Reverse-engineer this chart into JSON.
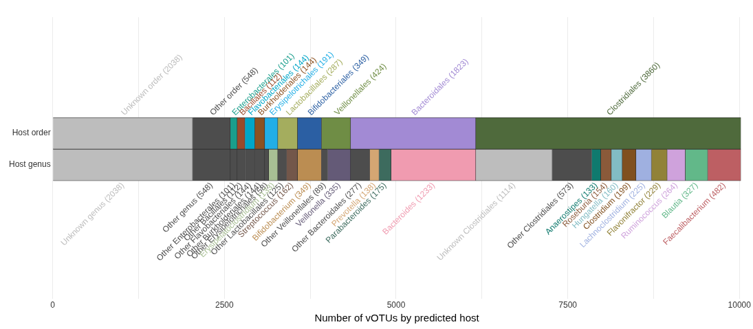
{
  "chart_data": {
    "type": "bar",
    "orientation": "horizontal",
    "stacked": true,
    "xlabel": "Number of vOTUs by predicted host",
    "categories": [
      "Host order",
      "Host genus"
    ],
    "xlim": [
      0,
      10021
    ],
    "xticks": [
      0,
      {
        "value": 1250,
        "label": null
      },
      2500,
      {
        "value": 3750,
        "label": null
      },
      5000,
      {
        "value": 6250,
        "label": null
      },
      7500,
      {
        "value": 8750,
        "label": null
      },
      10000
    ],
    "grid": "x",
    "legend": false,
    "series": [
      {
        "name": "Unknown order",
        "color": "#bdbdbd",
        "values": [
          2038,
          null
        ],
        "value_labels": [
          "(2038)",
          null
        ]
      },
      {
        "name": "Other order",
        "color": "#4d4d4d",
        "values": [
          548,
          null
        ],
        "value_labels": [
          "(548)",
          null
        ]
      },
      {
        "name": "Enterobacterales",
        "color": "#1a9e8c",
        "values": [
          101,
          null
        ],
        "value_labels": [
          "(101)",
          null
        ]
      },
      {
        "name": "Bacillales",
        "color": "#9a4a2a",
        "values": [
          112,
          null
        ],
        "value_labels": [
          "(112)",
          null
        ]
      },
      {
        "name": "Flavobacteriales",
        "color": "#00a6c8",
        "values": [
          144,
          null
        ],
        "value_labels": [
          "(144)",
          null
        ]
      },
      {
        "name": "Burkholderiales",
        "color": "#8b5222",
        "values": [
          144,
          null
        ],
        "value_labels": [
          "(144)",
          null
        ]
      },
      {
        "name": "Erysipelotrichales",
        "color": "#22aee6",
        "values": [
          191,
          null
        ],
        "value_labels": [
          "(191)",
          null
        ]
      },
      {
        "name": "Lactobacillales",
        "color": "#a4ad5e",
        "values": [
          287,
          null
        ],
        "value_labels": [
          "(287)",
          null
        ]
      },
      {
        "name": "Bifidobacteriales",
        "color": "#2b5fa3",
        "values": [
          349,
          null
        ],
        "value_labels": [
          "(349)",
          null
        ]
      },
      {
        "name": "Veillonellales",
        "color": "#6f8d45",
        "values": [
          424,
          null
        ],
        "value_labels": [
          "(424)",
          null
        ]
      },
      {
        "name": "Bacteroidales",
        "color": "#a28ad4",
        "values": [
          1823,
          null
        ],
        "value_labels": [
          "(1823)",
          null
        ]
      },
      {
        "name": "Clostridiales",
        "color": "#4f6a3c",
        "values": [
          3860,
          null
        ],
        "value_labels": [
          "(3860)",
          null
        ]
      },
      {
        "name": "Unknown genus",
        "color": "#bdbdbd",
        "values": [
          null,
          2038
        ],
        "value_labels": [
          null,
          "(2038)"
        ]
      },
      {
        "name": "Other genus",
        "color": "#4d4d4d",
        "values": [
          null,
          548
        ],
        "value_labels": [
          null,
          "(548)"
        ]
      },
      {
        "name": "Other Enterobacterales",
        "color": "#4d4d4d",
        "values": [
          null,
          101
        ],
        "value_labels": [
          null,
          "(101)"
        ]
      },
      {
        "name": "Other Bacillales",
        "color": "#4d4d4d",
        "values": [
          null,
          112
        ],
        "value_labels": [
          null,
          "(112)"
        ]
      },
      {
        "name": "Other Flavobacteriales",
        "color": "#4d4d4d",
        "values": [
          null,
          144
        ],
        "value_labels": [
          null,
          "(144)"
        ]
      },
      {
        "name": "Other Burkholderiales",
        "color": "#4d4d4d",
        "values": [
          null,
          144
        ],
        "value_labels": [
          null,
          "(144)"
        ]
      },
      {
        "name": "Other Erysipelotrichales",
        "color": "#4d4d4d",
        "values": [
          null,
          58
        ],
        "value_labels": [
          null,
          "(58)"
        ]
      },
      {
        "name": "Erysipelatoclostridium",
        "color": "#a8bf94",
        "values": [
          null,
          133
        ],
        "value_labels": [
          null,
          "(133)"
        ]
      },
      {
        "name": "Other Lactobacillales",
        "color": "#4d4d4d",
        "values": [
          null,
          125
        ],
        "value_labels": [
          null,
          "(125)"
        ]
      },
      {
        "name": "Streptococcus",
        "color": "#73574a",
        "values": [
          null,
          162
        ],
        "value_labels": [
          null,
          "(162)"
        ]
      },
      {
        "name": "Bifidobacterium",
        "color": "#bb8d52",
        "values": [
          null,
          349
        ],
        "value_labels": [
          null,
          "(349)"
        ]
      },
      {
        "name": "Other Veillonellales",
        "color": "#4d4d4d",
        "values": [
          null,
          89
        ],
        "value_labels": [
          null,
          "(89)"
        ]
      },
      {
        "name": "Veillonella",
        "color": "#645a77",
        "values": [
          null,
          335
        ],
        "value_labels": [
          null,
          "(335)"
        ]
      },
      {
        "name": "Other Bacteroidales",
        "color": "#4d4d4d",
        "values": [
          null,
          277
        ],
        "value_labels": [
          null,
          "(277)"
        ]
      },
      {
        "name": "Prevotella",
        "color": "#d4a673",
        "values": [
          null,
          138
        ],
        "value_labels": [
          null,
          "(138)"
        ]
      },
      {
        "name": "Parabacteroides",
        "color": "#3d6b5e",
        "values": [
          null,
          175
        ],
        "value_labels": [
          null,
          "(175)"
        ]
      },
      {
        "name": "Bacteroides",
        "color": "#f09bb0",
        "values": [
          null,
          1233
        ],
        "value_labels": [
          null,
          "(1233)"
        ]
      },
      {
        "name": "Unknown Clostridiales",
        "color": "#bdbdbd",
        "values": [
          null,
          1114
        ],
        "value_labels": [
          null,
          "(1114)"
        ]
      },
      {
        "name": "Other Clostridiales",
        "color": "#4d4d4d",
        "values": [
          null,
          573
        ],
        "value_labels": [
          null,
          "(573)"
        ]
      },
      {
        "name": "Anaerostipes",
        "color": "#0f7a6e",
        "values": [
          null,
          133
        ],
        "value_labels": [
          null,
          "(133)"
        ]
      },
      {
        "name": "Roseburia",
        "color": "#8a5a3a",
        "values": [
          null,
          154
        ],
        "value_labels": [
          null,
          "(154)"
        ]
      },
      {
        "name": "Hungatella",
        "color": "#82bcc4",
        "values": [
          null,
          160
        ],
        "value_labels": [
          null,
          "(160)"
        ]
      },
      {
        "name": "Clostridium",
        "color": "#80501f",
        "values": [
          null,
          199
        ],
        "value_labels": [
          null,
          "(199)"
        ]
      },
      {
        "name": "Lachnoclostridium",
        "color": "#9fb0e0",
        "values": [
          null,
          225
        ],
        "value_labels": [
          null,
          "(225)"
        ]
      },
      {
        "name": "Flavonifractor",
        "color": "#918238",
        "values": [
          null,
          229
        ],
        "value_labels": [
          null,
          "(229)"
        ]
      },
      {
        "name": "Ruminococcus",
        "color": "#cfa2dc",
        "values": [
          null,
          264
        ],
        "value_labels": [
          null,
          "(264)"
        ]
      },
      {
        "name": "Blautia",
        "color": "#62b889",
        "values": [
          null,
          327
        ],
        "value_labels": [
          null,
          "(327)"
        ]
      },
      {
        "name": "Faecalibacterium",
        "color": "#bd5f63",
        "values": [
          null,
          482
        ],
        "value_labels": [
          null,
          "(482)"
        ]
      }
    ]
  }
}
